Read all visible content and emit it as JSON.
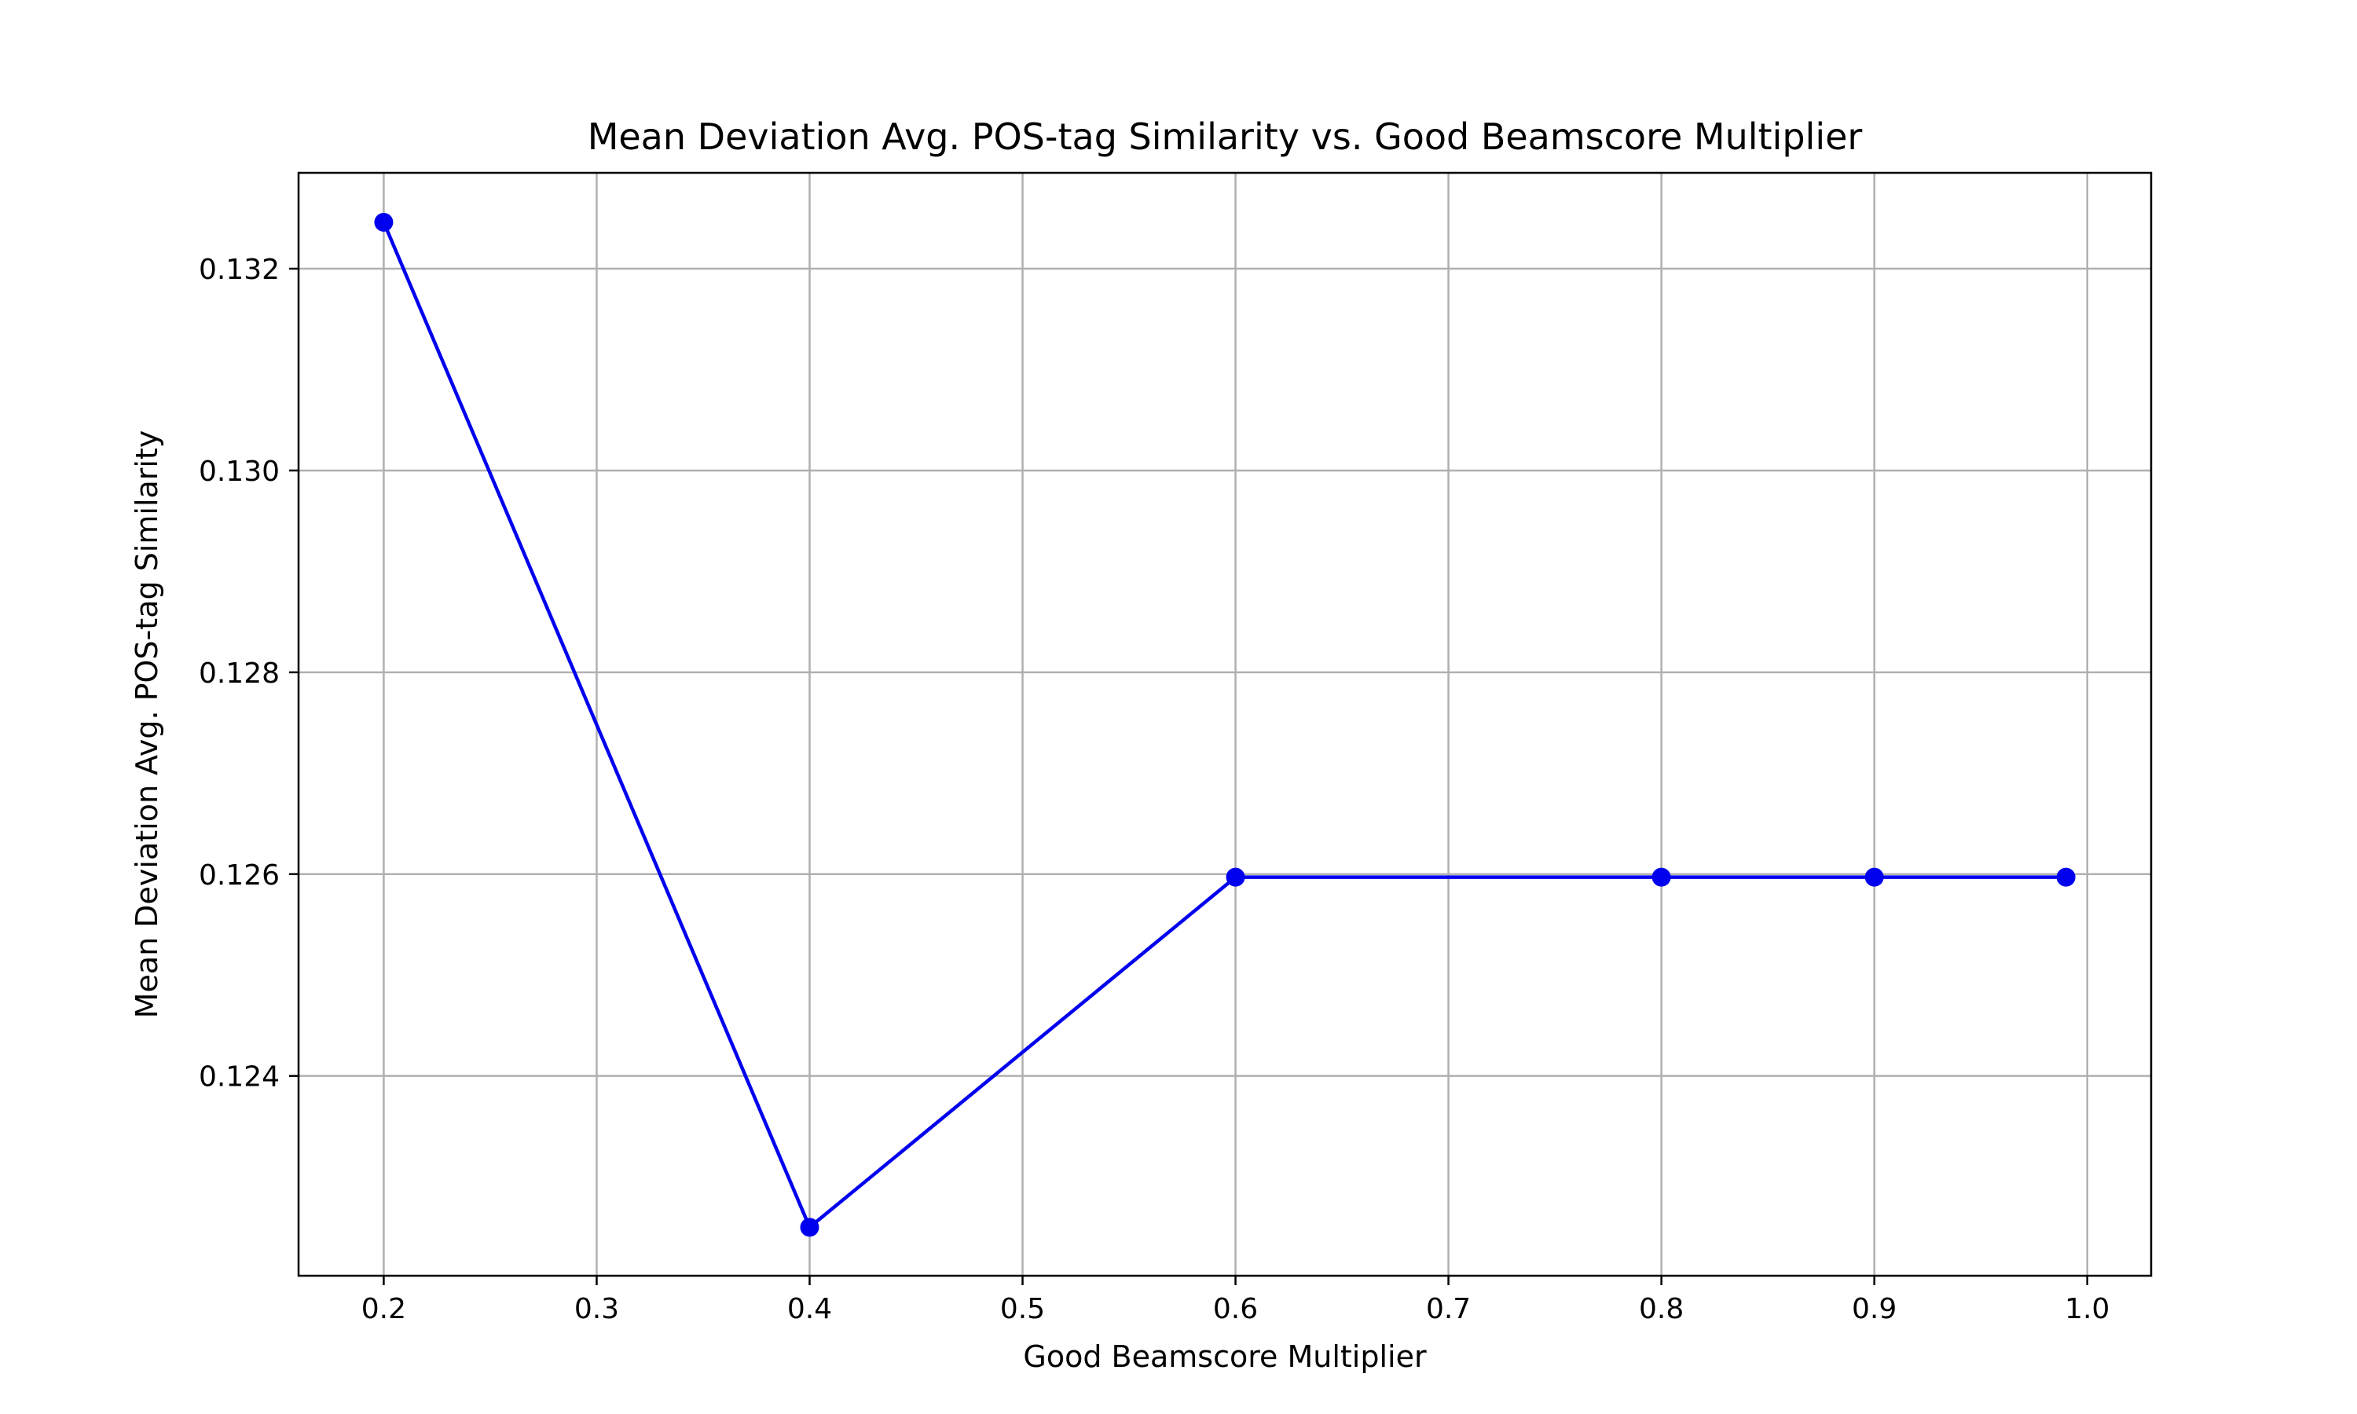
{
  "chart_data": {
    "type": "line",
    "title": "Mean Deviation Avg. POS-tag Similarity vs. Good Beamscore Multiplier",
    "xlabel": "Good Beamscore Multiplier",
    "ylabel": "Mean Deviation Avg. POS-tag Similarity",
    "xlim": [
      0.16,
      1.03
    ],
    "ylim": [
      0.12202,
      0.13295
    ],
    "xticks": [
      0.2,
      0.3,
      0.4,
      0.5,
      0.6,
      0.7,
      0.8,
      0.9,
      1.0
    ],
    "xtick_labels": [
      "0.2",
      "0.3",
      "0.4",
      "0.5",
      "0.6",
      "0.7",
      "0.8",
      "0.9",
      "1.0"
    ],
    "yticks": [
      0.124,
      0.126,
      0.128,
      0.13,
      0.132
    ],
    "ytick_labels": [
      "0.124",
      "0.126",
      "0.128",
      "0.130",
      "0.132"
    ],
    "grid": true,
    "legend": "none",
    "series": [
      {
        "color": "#0000ee",
        "marker": "circle",
        "x": [
          0.2,
          0.4,
          0.6,
          0.8,
          0.9,
          0.99
        ],
        "y": [
          0.13246,
          0.1225,
          0.12597,
          0.12597,
          0.12597,
          0.12597
        ]
      }
    ]
  }
}
